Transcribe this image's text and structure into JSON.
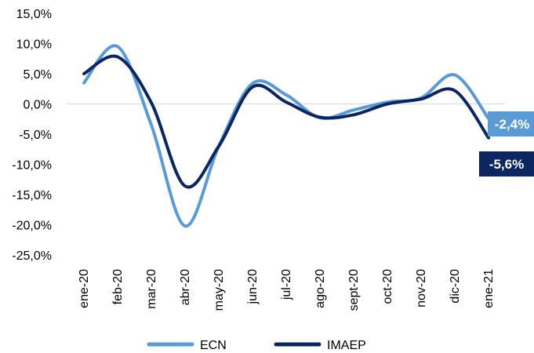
{
  "chart_data": {
    "type": "line",
    "categories": [
      "ene-20",
      "feb-20",
      "mar-20",
      "abr-20",
      "may-20",
      "jun-20",
      "jul-20",
      "ago-20",
      "sept-20",
      "oct-20",
      "nov-20",
      "dic-20",
      "ene-21"
    ],
    "yticks": [
      "15,0%",
      "10,0%",
      "5,0%",
      "0,0%",
      "-5,0%",
      "-10,0%",
      "-15,0%",
      "-20,0%",
      "-25,0%"
    ],
    "ylim": [
      -25,
      15
    ],
    "series": [
      {
        "name": "ECN",
        "color": "#5b9bd5",
        "values": [
          3.5,
          9.5,
          -3.5,
          -20.2,
          -7.0,
          3.4,
          1.5,
          -2.3,
          -1.0,
          0.3,
          1.0,
          4.8,
          -2.4
        ]
      },
      {
        "name": "IMAEP",
        "color": "#0b2660",
        "values": [
          5.0,
          7.8,
          0.2,
          -13.6,
          -7.0,
          2.8,
          0.3,
          -2.2,
          -1.8,
          0.0,
          0.8,
          2.2,
          -5.6
        ]
      }
    ],
    "data_labels": [
      {
        "series": "ECN",
        "text": "-2,4%",
        "color": "#5b9bd5"
      },
      {
        "series": "IMAEP",
        "text": "-5,6%",
        "color": "#0b2660"
      }
    ],
    "legend": {
      "position": "bottom",
      "items": [
        "ECN",
        "IMAEP"
      ]
    }
  }
}
